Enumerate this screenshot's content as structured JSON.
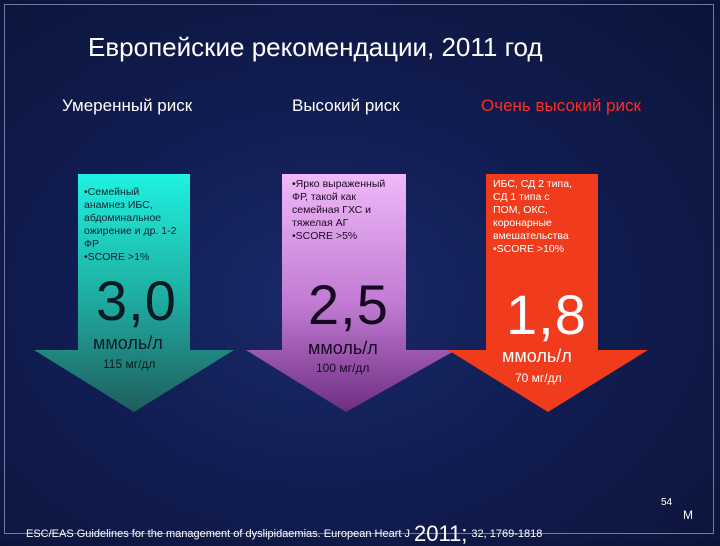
{
  "title": "Европейские рекомендации, 2011 год",
  "columns": [
    {
      "heading": "Умеренный риск",
      "heading_color": "#ffffff",
      "lines": [
        "•Семейный",
        "анамнез ИБС,",
        "абдоминальное",
        "ожирение и др. 1-2",
        "ФР",
        "•SCORE >1%"
      ],
      "value": "3,0",
      "unit": "ммоль/л",
      "mg": "115 мг/дл"
    },
    {
      "heading": "Высокий риск",
      "heading_color": "#ffffff",
      "lines": [
        "•Ярко выраженный",
        "ФР, такой как",
        "семейная ГХС и",
        "тяжелая АГ",
        "•SCORE >5%"
      ],
      "value": "2,5",
      "unit": "ммоль/л",
      "mg": "100 мг/дл"
    },
    {
      "heading": "Очень высокий риск",
      "heading_color": "#ff2a2a",
      "lines": [
        "ИБС, СД 2 типа,",
        "СД 1 типа с",
        "ПОМ, ОКС,",
        "коронарные",
        "вмешательства",
        "•SCORE >10%"
      ],
      "value": "1,8",
      "unit": "ммоль/л",
      "mg": "70 мг/дл"
    }
  ],
  "footer": {
    "text": "ESC/EAS Guidelines for the management of dyslipidaemias. European Heart J",
    "year": "2011;",
    "ref": "32, 1769-1818"
  },
  "page_number": "54",
  "page_letter": "M",
  "colors": {
    "arrow1_top": "#1fe6d6",
    "arrow1_bottom": "#1f6e6a",
    "arrow2_top": "#e7a8f2",
    "arrow2_bottom": "#7a3a8a",
    "arrow3": "#f23a1a"
  }
}
